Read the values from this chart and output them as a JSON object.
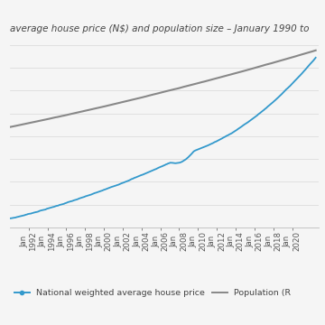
{
  "title": "average house price (N$) and population size – January 1990 to",
  "x_start_year": 1990,
  "x_end_year": 2022,
  "x_tick_years": [
    1992,
    1994,
    1996,
    1998,
    2000,
    2002,
    2004,
    2006,
    2008,
    2010,
    2012,
    2014,
    2016,
    2018,
    2020
  ],
  "house_price_color": "#3399cc",
  "population_color": "#888888",
  "background_color": "#f5f5f5",
  "grid_color": "#dddddd",
  "legend_house_label": "National weighted average house price",
  "legend_pop_label": "Population (R",
  "house_price_lw": 1.3,
  "population_lw": 1.5,
  "title_fontsize": 7.5,
  "legend_fontsize": 6.8,
  "tick_fontsize": 6.2,
  "n_grid_lines": 8
}
